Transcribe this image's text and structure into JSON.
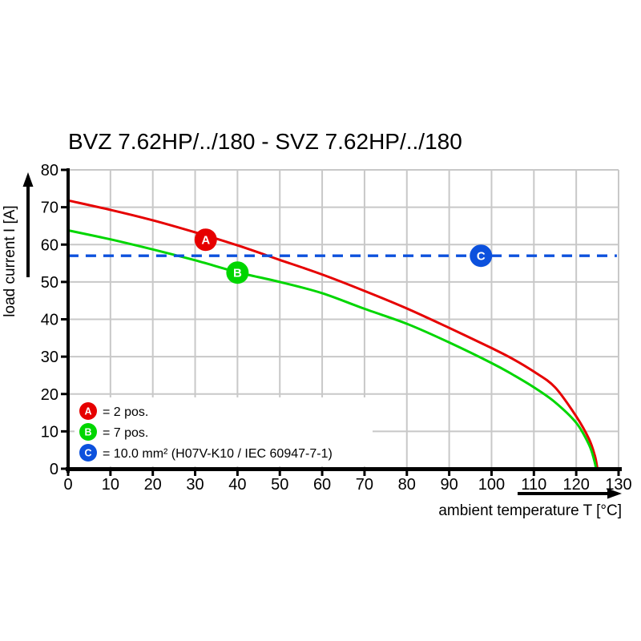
{
  "title": "BVZ 7.62HP/../180 - SVZ 7.62HP/../180",
  "colors": {
    "series_a_red": "#e60000",
    "series_b_green": "#00d600",
    "series_c_blue": "#0c51dd",
    "grid": "#c8c8c8",
    "axis": "#000000",
    "background": "#ffffff",
    "marker_letter": "#ffffff"
  },
  "chart_data": {
    "type": "line",
    "title": "BVZ 7.62HP/../180 - SVZ 7.62HP/../180",
    "xlabel": "ambient temperature T [°C]",
    "ylabel": "load current I [A]",
    "xlim": [
      0,
      130
    ],
    "ylim": [
      0,
      80
    ],
    "x_ticks": [
      0,
      10,
      20,
      30,
      40,
      50,
      60,
      70,
      80,
      90,
      100,
      110,
      120,
      130
    ],
    "y_ticks": [
      0,
      10,
      20,
      30,
      40,
      50,
      60,
      70,
      80
    ],
    "grid": true,
    "legend_position": "lower-left",
    "series": [
      {
        "name": "A",
        "legend": "= 2 pos.",
        "color": "#e60000",
        "style": "solid",
        "points": [
          [
            0,
            71.8
          ],
          [
            10,
            69.3
          ],
          [
            20,
            66.5
          ],
          [
            30,
            63.3
          ],
          [
            40,
            59.8
          ],
          [
            50,
            55.9
          ],
          [
            60,
            52.0
          ],
          [
            70,
            47.6
          ],
          [
            80,
            42.9
          ],
          [
            90,
            37.7
          ],
          [
            100,
            32.3
          ],
          [
            105,
            29.4
          ],
          [
            110,
            26.0
          ],
          [
            115,
            21.8
          ],
          [
            120,
            14.0
          ],
          [
            123,
            8.0
          ],
          [
            124.4,
            3.5
          ],
          [
            125,
            0
          ]
        ]
      },
      {
        "name": "B",
        "legend": "= 7 pos.",
        "color": "#00d600",
        "style": "solid",
        "points": [
          [
            0,
            63.8
          ],
          [
            10,
            61.4
          ],
          [
            20,
            58.7
          ],
          [
            30,
            55.8
          ],
          [
            40,
            52.6
          ],
          [
            50,
            50.0
          ],
          [
            60,
            47.0
          ],
          [
            70,
            42.8
          ],
          [
            80,
            38.8
          ],
          [
            90,
            33.8
          ],
          [
            100,
            28.3
          ],
          [
            105,
            25.2
          ],
          [
            110,
            21.8
          ],
          [
            115,
            17.8
          ],
          [
            120,
            12.3
          ],
          [
            123,
            6.5
          ],
          [
            124.2,
            2.5
          ],
          [
            124.7,
            0
          ]
        ]
      },
      {
        "name": "C",
        "legend": "= 10.0 mm² (H07V-K10 / IEC 60947-7-1)",
        "color": "#0c51dd",
        "style": "dashed",
        "points": [
          [
            0,
            57
          ],
          [
            129.6,
            57
          ]
        ]
      }
    ],
    "markers": [
      {
        "label": "A",
        "series": "A",
        "t": 32.5,
        "i": 61.3
      },
      {
        "label": "B",
        "series": "B",
        "t": 40.0,
        "i": 52.5
      },
      {
        "label": "C",
        "series": "C",
        "t": 97.5,
        "i": 57.0
      }
    ]
  }
}
